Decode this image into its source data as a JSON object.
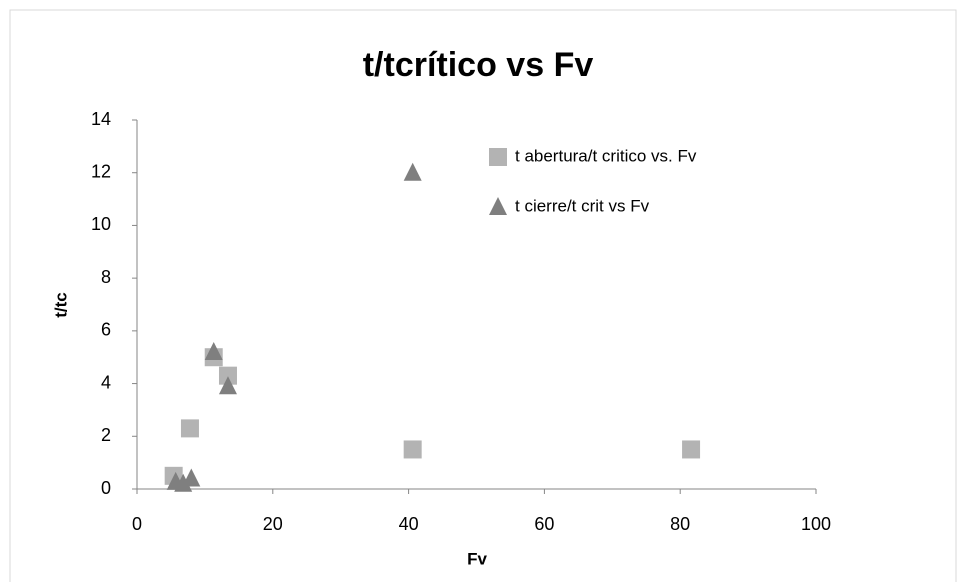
{
  "chart_data": {
    "type": "scatter",
    "title": "t/tcrítico  vs Fv",
    "x_label": "Fv",
    "y_label": "t/tc",
    "xlim": [
      0,
      100
    ],
    "xticks": [
      0,
      20,
      40,
      60,
      80,
      100
    ],
    "ylim": [
      0,
      14
    ],
    "yticks": [
      0,
      2,
      4,
      6,
      8,
      10,
      12,
      14
    ],
    "legend": "upper right",
    "series": [
      {
        "name": "t abertura/t critico vs. Fv",
        "color": "#b3b3b3",
        "marker": "square",
        "x": [
          5.4,
          7.8,
          11.3,
          13.4,
          40.6,
          81.6
        ],
        "values": [
          0.5,
          2.3,
          5.0,
          4.3,
          1.5,
          1.5
        ]
      },
      {
        "name": "t cierre/t crit vs Fv",
        "color": "#7f7f7f",
        "marker": "triangle",
        "x": [
          5.7,
          6.8,
          8.0,
          11.3,
          13.4,
          40.6
        ],
        "values": [
          0.27,
          0.2,
          0.4,
          5.2,
          3.9,
          12.0
        ]
      }
    ]
  }
}
